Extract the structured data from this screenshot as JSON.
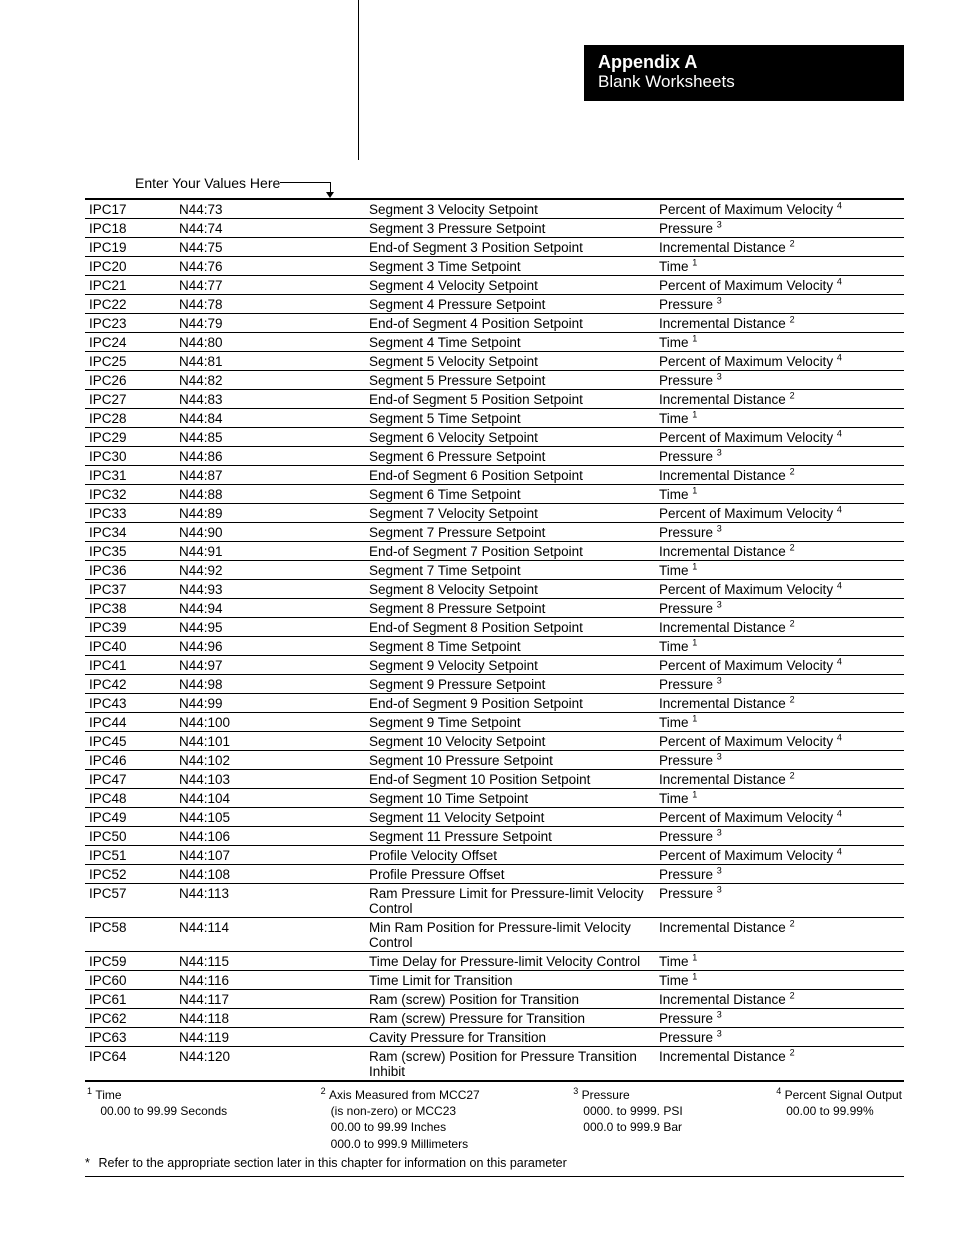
{
  "header": {
    "title": "Appendix A",
    "subtitle": "Blank Worksheets"
  },
  "enter_label": "Enter Your Values Here",
  "rows": [
    {
      "ipc": "IPC17",
      "addr": "N44:73",
      "desc": "Segment 3 Velocity Setpoint",
      "unit": "Percent of Maximum Velocity",
      "sup": "4"
    },
    {
      "ipc": "IPC18",
      "addr": "N44:74",
      "desc": "Segment 3 Pressure Setpoint",
      "unit": "Pressure",
      "sup": "3"
    },
    {
      "ipc": "IPC19",
      "addr": "N44:75",
      "desc": "End-of Segment 3 Position Setpoint",
      "unit": "Incremental Distance",
      "sup": "2"
    },
    {
      "ipc": "IPC20",
      "addr": "N44:76",
      "desc": "Segment 3 Time Setpoint",
      "unit": "Time",
      "sup": "1"
    },
    {
      "ipc": "IPC21",
      "addr": "N44:77",
      "desc": "Segment 4 Velocity Setpoint",
      "unit": "Percent of Maximum Velocity",
      "sup": "4"
    },
    {
      "ipc": "IPC22",
      "addr": "N44:78",
      "desc": "Segment 4 Pressure Setpoint",
      "unit": "Pressure",
      "sup": "3"
    },
    {
      "ipc": "IPC23",
      "addr": "N44:79",
      "desc": "End-of Segment 4 Position Setpoint",
      "unit": "Incremental Distance",
      "sup": "2"
    },
    {
      "ipc": "IPC24",
      "addr": "N44:80",
      "desc": "Segment 4 Time Setpoint",
      "unit": "Time",
      "sup": "1"
    },
    {
      "ipc": "IPC25",
      "addr": "N44:81",
      "desc": "Segment 5 Velocity Setpoint",
      "unit": "Percent of Maximum Velocity",
      "sup": "4"
    },
    {
      "ipc": "IPC26",
      "addr": "N44:82",
      "desc": "Segment 5 Pressure Setpoint",
      "unit": "Pressure",
      "sup": "3"
    },
    {
      "ipc": "IPC27",
      "addr": "N44:83",
      "desc": "End-of Segment 5 Position Setpoint",
      "unit": "Incremental Distance",
      "sup": "2"
    },
    {
      "ipc": "IPC28",
      "addr": "N44:84",
      "desc": "Segment 5 Time Setpoint",
      "unit": "Time",
      "sup": "1"
    },
    {
      "ipc": "IPC29",
      "addr": "N44:85",
      "desc": "Segment 6 Velocity Setpoint",
      "unit": "Percent of Maximum Velocity",
      "sup": "4"
    },
    {
      "ipc": "IPC30",
      "addr": "N44:86",
      "desc": "Segment 6 Pressure Setpoint",
      "unit": "Pressure",
      "sup": "3"
    },
    {
      "ipc": "IPC31",
      "addr": "N44:87",
      "desc": "End-of Segment 6 Position Setpoint",
      "unit": "Incremental Distance",
      "sup": "2"
    },
    {
      "ipc": "IPC32",
      "addr": "N44:88",
      "desc": "Segment 6 Time Setpoint",
      "unit": "Time",
      "sup": "1"
    },
    {
      "ipc": "IPC33",
      "addr": "N44:89",
      "desc": "Segment 7 Velocity Setpoint",
      "unit": "Percent of Maximum Velocity",
      "sup": "4"
    },
    {
      "ipc": "IPC34",
      "addr": "N44:90",
      "desc": "Segment 7 Pressure Setpoint",
      "unit": "Pressure",
      "sup": "3"
    },
    {
      "ipc": "IPC35",
      "addr": "N44:91",
      "desc": "End-of Segment 7 Position Setpoint",
      "unit": "Incremental Distance",
      "sup": "2"
    },
    {
      "ipc": "IPC36",
      "addr": "N44:92",
      "desc": "Segment 7 Time Setpoint",
      "unit": "Time",
      "sup": "1"
    },
    {
      "ipc": "IPC37",
      "addr": "N44:93",
      "desc": "Segment 8 Velocity Setpoint",
      "unit": "Percent of Maximum Velocity",
      "sup": "4"
    },
    {
      "ipc": "IPC38",
      "addr": "N44:94",
      "desc": "Segment 8 Pressure Setpoint",
      "unit": "Pressure",
      "sup": "3"
    },
    {
      "ipc": "IPC39",
      "addr": "N44:95",
      "desc": "End-of Segment 8 Position Setpoint",
      "unit": "Incremental Distance",
      "sup": "2"
    },
    {
      "ipc": "IPC40",
      "addr": "N44:96",
      "desc": "Segment 8 Time Setpoint",
      "unit": "Time",
      "sup": "1"
    },
    {
      "ipc": "IPC41",
      "addr": "N44:97",
      "desc": "Segment 9 Velocity Setpoint",
      "unit": "Percent of Maximum Velocity",
      "sup": "4"
    },
    {
      "ipc": "IPC42",
      "addr": "N44:98",
      "desc": "Segment 9 Pressure Setpoint",
      "unit": "Pressure",
      "sup": "3"
    },
    {
      "ipc": "IPC43",
      "addr": "N44:99",
      "desc": "End-of Segment 9 Position Setpoint",
      "unit": "Incremental Distance",
      "sup": "2"
    },
    {
      "ipc": "IPC44",
      "addr": "N44:100",
      "desc": "Segment 9 Time Setpoint",
      "unit": "Time",
      "sup": "1"
    },
    {
      "ipc": "IPC45",
      "addr": "N44:101",
      "desc": "Segment 10 Velocity Setpoint",
      "unit": "Percent of Maximum Velocity",
      "sup": "4"
    },
    {
      "ipc": "IPC46",
      "addr": "N44:102",
      "desc": "Segment 10 Pressure Setpoint",
      "unit": "Pressure",
      "sup": "3"
    },
    {
      "ipc": "IPC47",
      "addr": "N44:103",
      "desc": "End-of Segment 10 Position Setpoint",
      "unit": "Incremental Distance",
      "sup": "2"
    },
    {
      "ipc": "IPC48",
      "addr": "N44:104",
      "desc": "Segment 10 Time Setpoint",
      "unit": "Time",
      "sup": "1"
    },
    {
      "ipc": "IPC49",
      "addr": "N44:105",
      "desc": "Segment 11 Velocity Setpoint",
      "unit": "Percent of Maximum Velocity",
      "sup": "4"
    },
    {
      "ipc": "IPC50",
      "addr": "N44:106",
      "desc": "Segment 11 Pressure Setpoint",
      "unit": "Pressure",
      "sup": "3"
    },
    {
      "ipc": "IPC51",
      "addr": "N44:107",
      "desc": "Profile Velocity Offset",
      "unit": "Percent of Maximum Velocity",
      "sup": "4"
    },
    {
      "ipc": "IPC52",
      "addr": "N44:108",
      "desc": "Profile Pressure Offset",
      "unit": "Pressure",
      "sup": "3"
    },
    {
      "ipc": "IPC57",
      "addr": "N44:113",
      "desc": "Ram Pressure Limit for Pressure-limit Velocity Control",
      "unit": "Pressure",
      "sup": "3"
    },
    {
      "ipc": "IPC58",
      "addr": "N44:114",
      "desc": "Min Ram Position for Pressure-limit Velocity Control",
      "unit": "Incremental Distance",
      "sup": "2"
    },
    {
      "ipc": "IPC59",
      "addr": "N44:115",
      "desc": "Time Delay for Pressure-limit Velocity Control",
      "unit": "Time",
      "sup": "1"
    },
    {
      "ipc": "IPC60",
      "addr": "N44:116",
      "desc": "Time Limit for Transition",
      "unit": "Time",
      "sup": "1"
    },
    {
      "ipc": "IPC61",
      "addr": "N44:117",
      "desc": "Ram (screw) Position for Transition",
      "unit": "Incremental Distance",
      "sup": "2"
    },
    {
      "ipc": "IPC62",
      "addr": "N44:118",
      "desc": "Ram (screw) Pressure for Transition",
      "unit": "Pressure",
      "sup": "3"
    },
    {
      "ipc": "IPC63",
      "addr": "N44:119",
      "desc": "Cavity Pressure for Transition",
      "unit": "Pressure",
      "sup": "3"
    },
    {
      "ipc": "IPC64",
      "addr": "N44:120",
      "desc": "Ram (screw) Position for Pressure Transition Inhibit",
      "unit": "Incremental Distance",
      "sup": "2"
    }
  ],
  "footnotes": {
    "fn1": {
      "num": "1",
      "title": "Time",
      "line1": "00.00 to 99.99 Seconds"
    },
    "fn2": {
      "num": "2",
      "title": "Axis Measured from MCC27",
      "line1": "(is non-zero) or MCC23",
      "line2": "00.00 to 99.99 Inches",
      "line3": "000.0 to 999.9 Millimeters"
    },
    "fn3": {
      "num": "3",
      "title": "Pressure",
      "line1": "0000. to 9999. PSI",
      "line2": "000.0 to 999.9 Bar"
    },
    "fn4": {
      "num": "4",
      "title": "Percent Signal Output",
      "line1": "00.00 to 99.99%"
    }
  },
  "note": "Refer to the appropriate section later in this chapter for information on this parameter"
}
